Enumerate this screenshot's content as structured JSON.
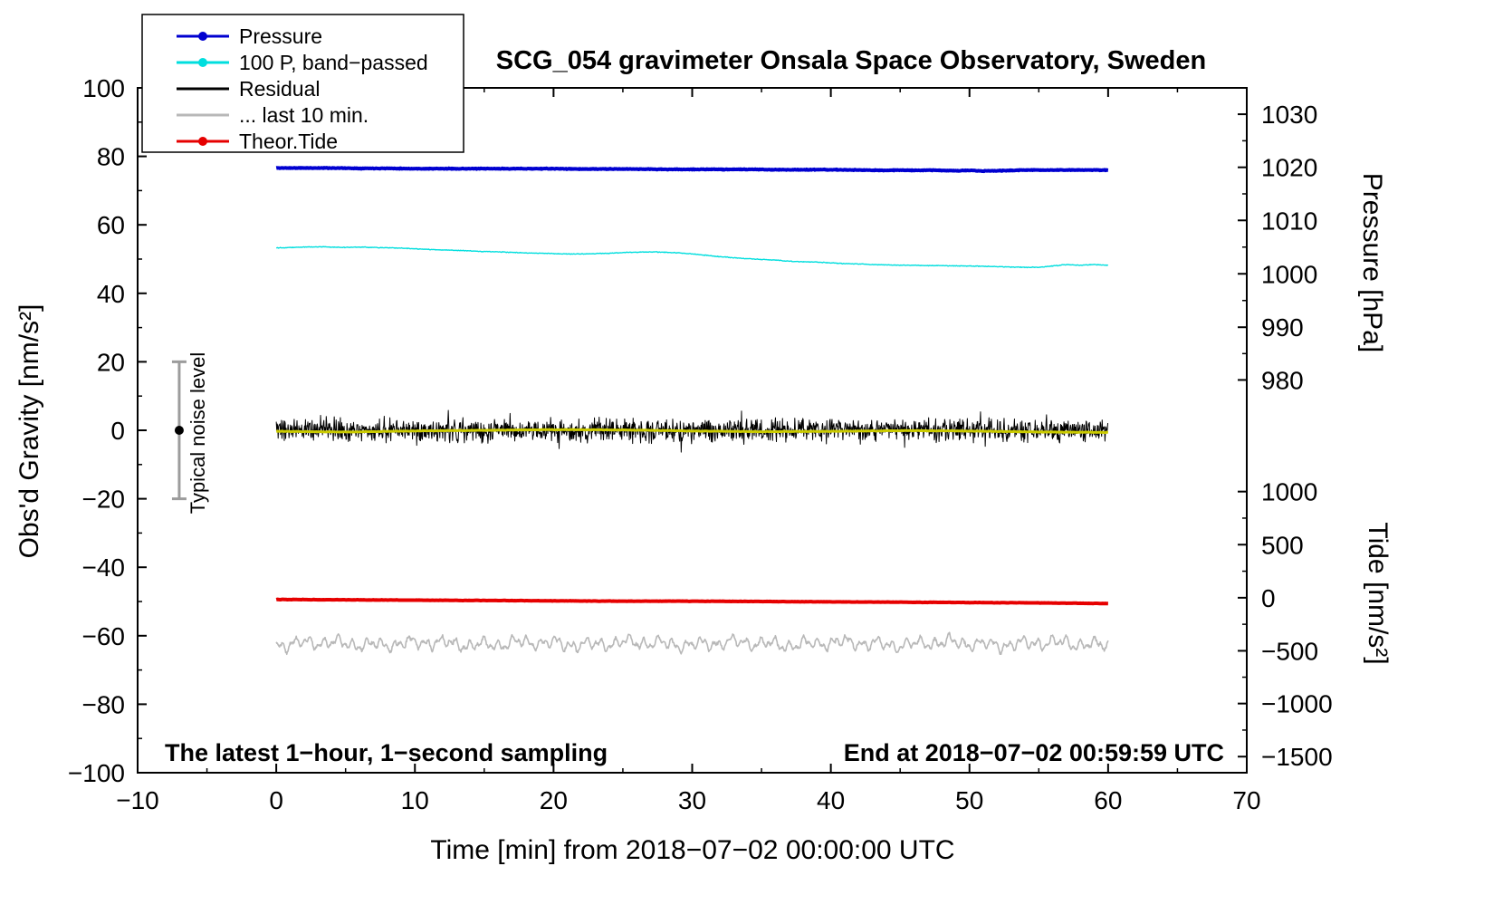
{
  "figure": {
    "title": "SCG_054 gravimeter Onsala Space Observatory, Sweden",
    "xlabel": "Time [min] from 2018−07−02 00:00:00 UTC",
    "ylabel_left": "Obs'd Gravity [nm/s²]",
    "ylabel_pressure": "Pressure [hPa]",
    "ylabel_tide": "Tide [nm/s²]",
    "annotation_left": "The latest 1−hour, 1−second sampling",
    "annotation_right": "End at 2018−07−02 00:59:59 UTC",
    "noise_label": "Typical noise level"
  },
  "legend": {
    "entries": [
      {
        "label": "Pressure",
        "color": "#0000d0",
        "marker": "dot"
      },
      {
        "label": "100 P, band−passed",
        "color": "#00dede",
        "marker": "dot"
      },
      {
        "label": "Residual",
        "color": "#000000",
        "marker": "none"
      },
      {
        "label": "... last 10 min.",
        "color": "#b8b8b8",
        "marker": "none"
      },
      {
        "label": "Theor.Tide",
        "color": "#e60000",
        "marker": "dot"
      }
    ]
  },
  "chart_data": {
    "type": "line",
    "title": "SCG_054 gravimeter Onsala Space Observatory, Sweden",
    "xlabel": "Time [min] from 2018−07−02 00:00:00 UTC",
    "grid": false,
    "legend_position": "top-left",
    "axes": {
      "x": {
        "label": "Time [min] from 2018−07−02 00:00:00 UTC",
        "lim": [
          -10,
          70
        ],
        "major_ticks": [
          -10,
          0,
          10,
          20,
          30,
          40,
          50,
          60,
          70
        ],
        "minor_step": 5
      },
      "y_left": {
        "label": "Obs'd Gravity [nm/s²]",
        "lim": [
          -100,
          100
        ],
        "major_ticks": [
          -100,
          -80,
          -60,
          -40,
          -20,
          0,
          20,
          40,
          60,
          80,
          100
        ],
        "minor_step": 10
      },
      "y_pressure": {
        "label": "Pressure [hPa]",
        "ticks": [
          [
            1030,
            92.3
          ],
          [
            1020,
            76.8
          ],
          [
            1010,
            61.3
          ],
          [
            1000,
            45.7
          ],
          [
            990,
            30.1
          ],
          [
            980,
            14.7
          ]
        ]
      },
      "y_tide": {
        "label": "Tide [nm/s²]",
        "ticks": [
          [
            1000,
            -17.9
          ],
          [
            500,
            -33.4
          ],
          [
            0,
            -48.9
          ],
          [
            -500,
            -64.4
          ],
          [
            -1000,
            -79.8
          ],
          [
            -1500,
            -95.3
          ]
        ]
      }
    },
    "noise_bar": {
      "x": -7,
      "g_range": [
        -20,
        20
      ],
      "dot_g": 0
    },
    "series": [
      {
        "name": "Pressure",
        "color": "#0000d0",
        "width": 4,
        "gen": "control",
        "range": [
          0,
          60
        ],
        "dt": 0.05,
        "jitter": 0.1,
        "seed": 11,
        "native_axis_values": "≈1019.4–1019.7 hPa, nearly constant",
        "points": [
          [
            0,
            76.6
          ],
          [
            2,
            76.6
          ],
          [
            4,
            76.6
          ],
          [
            6,
            76.5
          ],
          [
            8,
            76.5
          ],
          [
            10,
            76.4
          ],
          [
            12,
            76.4
          ],
          [
            14,
            76.4
          ],
          [
            16,
            76.4
          ],
          [
            18,
            76.4
          ],
          [
            20,
            76.4
          ],
          [
            22,
            76.3
          ],
          [
            24,
            76.3
          ],
          [
            26,
            76.3
          ],
          [
            28,
            76.2
          ],
          [
            30,
            76.2
          ],
          [
            32,
            76.2
          ],
          [
            34,
            76.2
          ],
          [
            36,
            76.1
          ],
          [
            38,
            76.1
          ],
          [
            40,
            76.1
          ],
          [
            42,
            76.0
          ],
          [
            44,
            75.9
          ],
          [
            45,
            76.0
          ],
          [
            46,
            75.9
          ],
          [
            47,
            76.0
          ],
          [
            48,
            75.9
          ],
          [
            49,
            75.8
          ],
          [
            50,
            75.9
          ],
          [
            51,
            75.7
          ],
          [
            52,
            75.8
          ],
          [
            53,
            75.9
          ],
          [
            54,
            76.0
          ],
          [
            56,
            76.0
          ],
          [
            58,
            76.0
          ],
          [
            60,
            76.0
          ]
        ]
      },
      {
        "name": "100 P, band−passed",
        "color": "#00dede",
        "width": 1.4,
        "gen": "control",
        "range": [
          0,
          60
        ],
        "dt": 0.05,
        "jitter": 0.1,
        "seed": 22,
        "points": [
          [
            0,
            53.3
          ],
          [
            1,
            53.4
          ],
          [
            2,
            53.5
          ],
          [
            3,
            53.6
          ],
          [
            4,
            53.5
          ],
          [
            5,
            53.4
          ],
          [
            6,
            53.5
          ],
          [
            7,
            53.4
          ],
          [
            8,
            53.3
          ],
          [
            9,
            53.2
          ],
          [
            10,
            53.0
          ],
          [
            11,
            52.8
          ],
          [
            12,
            52.7
          ],
          [
            13,
            52.5
          ],
          [
            14,
            52.4
          ],
          [
            15,
            52.2
          ],
          [
            16,
            52.1
          ],
          [
            17,
            52.0
          ],
          [
            18,
            51.8
          ],
          [
            19,
            51.7
          ],
          [
            20,
            51.6
          ],
          [
            21,
            51.5
          ],
          [
            22,
            51.5
          ],
          [
            23,
            51.6
          ],
          [
            24,
            51.7
          ],
          [
            25,
            51.9
          ],
          [
            26,
            52.0
          ],
          [
            27,
            52.1
          ],
          [
            28,
            52.0
          ],
          [
            29,
            51.8
          ],
          [
            30,
            51.5
          ],
          [
            31,
            51.1
          ],
          [
            32,
            50.7
          ],
          [
            33,
            50.4
          ],
          [
            34,
            50.1
          ],
          [
            35,
            49.9
          ],
          [
            36,
            49.7
          ],
          [
            37,
            49.4
          ],
          [
            38,
            49.2
          ],
          [
            39,
            49.1
          ],
          [
            40,
            48.9
          ],
          [
            41,
            48.7
          ],
          [
            42,
            48.6
          ],
          [
            43,
            48.4
          ],
          [
            44,
            48.3
          ],
          [
            45,
            48.2
          ],
          [
            46,
            48.2
          ],
          [
            47,
            48.1
          ],
          [
            48,
            48.1
          ],
          [
            49,
            48.0
          ],
          [
            50,
            48.0
          ],
          [
            51,
            47.9
          ],
          [
            52,
            47.8
          ],
          [
            53,
            47.7
          ],
          [
            54,
            47.6
          ],
          [
            55,
            47.6
          ],
          [
            56,
            48.0
          ],
          [
            57,
            48.4
          ],
          [
            58,
            48.2
          ],
          [
            59,
            48.4
          ],
          [
            60,
            48.2
          ]
        ]
      },
      {
        "name": "Residual",
        "color": "#000000",
        "width": 1,
        "gen": "noise",
        "range": [
          0,
          60
        ],
        "dt": 0.034,
        "seed": 33,
        "base": 0,
        "amplitude": 3.2,
        "spike_prob": 0.04,
        "spike_scale": 1.9,
        "native_axis_values": "noisy about 0, typical ±3, spikes to ±8 nm/s²"
      },
      {
        "name": "unlabeled yellow overlay (smoothed residual)",
        "color": "#cbcb00",
        "width": 3,
        "gen": "control",
        "range": [
          0,
          60
        ],
        "dt": 0.1,
        "jitter": 0.08,
        "seed": 44,
        "points": [
          [
            0,
            -0.3
          ],
          [
            5,
            -0.5
          ],
          [
            10,
            -0.2
          ],
          [
            15,
            0.0
          ],
          [
            20,
            0.2
          ],
          [
            25,
            0.1
          ],
          [
            30,
            -0.2
          ],
          [
            35,
            -0.4
          ],
          [
            40,
            -0.3
          ],
          [
            45,
            -0.1
          ],
          [
            50,
            -0.2
          ],
          [
            55,
            -0.5
          ],
          [
            60,
            -0.6
          ]
        ]
      },
      {
        "name": "... last 10 min.",
        "color": "#b8b8b8",
        "width": 1.6,
        "gen": "osc",
        "range": [
          0,
          60
        ],
        "dt": 0.04,
        "seed": 55,
        "base": -62.3,
        "components": [
          [
            1.05,
            1.1
          ],
          [
            0.5,
            0.8
          ],
          [
            2.6,
            0.7
          ],
          [
            7.5,
            0.4
          ]
        ],
        "noise": 0.45,
        "native_axis_values": "wavy about −62.3, amplitude ≈ ±2.5 nm/s²"
      },
      {
        "name": "Theor.Tide",
        "color": "#e60000",
        "width": 4,
        "gen": "control",
        "range": [
          0,
          60
        ],
        "dt": 0.1,
        "jitter": 0.05,
        "seed": 66,
        "native_axis_values": "≈ −16 to −55 nm/s² on tide axis, slowly decreasing",
        "points": [
          [
            0,
            -49.4
          ],
          [
            5,
            -49.5
          ],
          [
            10,
            -49.6
          ],
          [
            15,
            -49.7
          ],
          [
            20,
            -49.8
          ],
          [
            25,
            -49.9
          ],
          [
            30,
            -49.9
          ],
          [
            35,
            -50.0
          ],
          [
            40,
            -50.1
          ],
          [
            45,
            -50.2
          ],
          [
            50,
            -50.3
          ],
          [
            55,
            -50.4
          ],
          [
            60,
            -50.6
          ]
        ]
      }
    ]
  }
}
